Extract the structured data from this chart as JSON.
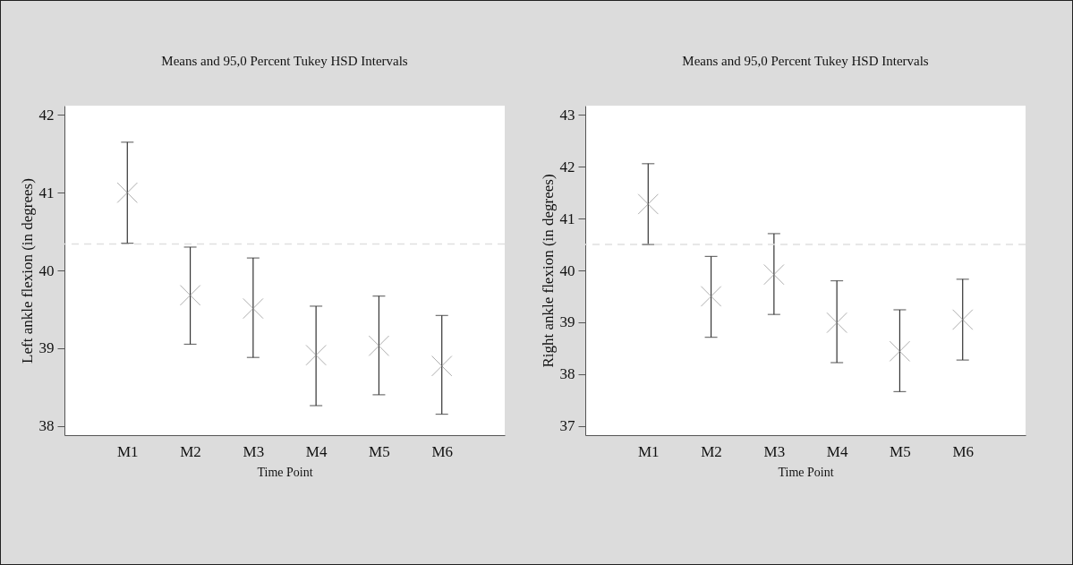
{
  "chart_data": [
    {
      "type": "scatter",
      "title": "Means and 95,0 Percent Tukey HSD Intervals",
      "xlabel": "Time Point",
      "ylabel": "Left ankle flexion (in degrees)",
      "categories": [
        "M1",
        "M2",
        "M3",
        "M4",
        "M5",
        "M6"
      ],
      "marker": "cross",
      "grid": false,
      "ylim": [
        37.88,
        42.12
      ],
      "yticks": [
        38,
        39,
        40,
        41,
        42
      ],
      "series": [
        {
          "color": "#8a8a8a",
          "values": [
            41.0,
            39.68,
            39.51,
            38.91,
            39.03,
            38.77
          ],
          "errors": [
            [
              40.35,
              41.65
            ],
            [
              39.05,
              40.3
            ],
            [
              38.88,
              40.16
            ],
            [
              38.26,
              39.54
            ],
            [
              38.4,
              39.67
            ],
            [
              38.15,
              39.42
            ]
          ]
        }
      ],
      "ref_lines": [
        {
          "axis": "y",
          "value": 40.34,
          "color": "#e0e0e0",
          "line_style": "dashed"
        }
      ]
    },
    {
      "type": "scatter",
      "title": "Means and 95,0 Percent Tukey HSD Intervals",
      "xlabel": "Time Point",
      "ylabel": "Right ankle flexion (in degrees)",
      "categories": [
        "M1",
        "M2",
        "M3",
        "M4",
        "M5",
        "M6"
      ],
      "marker": "cross",
      "grid": false,
      "ylim": [
        36.82,
        43.18
      ],
      "yticks": [
        37,
        38,
        39,
        40,
        41,
        42,
        43
      ],
      "series": [
        {
          "color": "#8a8a8a",
          "values": [
            41.28,
            39.5,
            39.92,
            38.99,
            38.44,
            39.05
          ],
          "errors": [
            [
              40.5,
              42.06
            ],
            [
              38.71,
              40.27
            ],
            [
              39.15,
              40.71
            ],
            [
              38.22,
              39.8
            ],
            [
              37.66,
              39.24
            ],
            [
              38.27,
              39.83
            ]
          ]
        }
      ],
      "ref_lines": [
        {
          "axis": "y",
          "value": 40.5,
          "color": "#e0e0e0",
          "line_style": "dashed"
        }
      ]
    }
  ]
}
